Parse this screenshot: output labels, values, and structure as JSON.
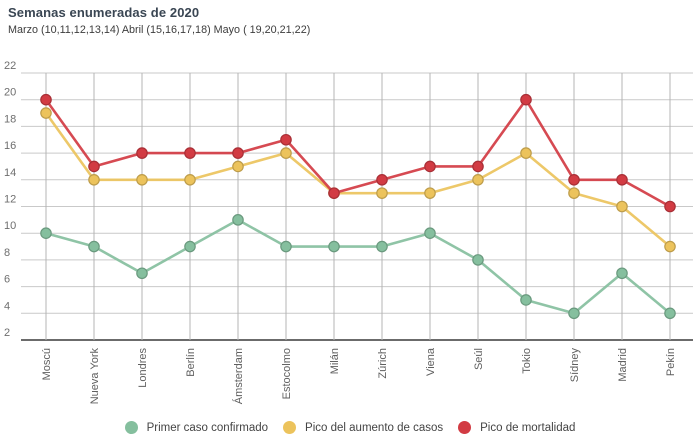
{
  "title": "Semanas enumeradas de 2020",
  "subtitle": "Marzo (10,11,12,13,14) Abril (15,16,17,18) Mayo ( 19,20,21,22)",
  "colors": {
    "background": "#ffffff",
    "title_text": "#3a4653",
    "grid": "#c9c9c9",
    "axis": "#6b6b6b",
    "green": "#85bf9e",
    "yellow": "#ecc35c",
    "red": "#d23b43"
  },
  "chart_data": {
    "type": "line",
    "title": "Semanas enumeradas de 2020",
    "subtitle": "Marzo (10,11,12,13,14) Abril (15,16,17,18) Mayo ( 19,20,21,22)",
    "categories": [
      "Moscú",
      "Nueva York",
      "Londres",
      "Berlín",
      "Ámsterdam",
      "Estocolmo",
      "Milán",
      "Zúrich",
      "Viena",
      "Seúl",
      "Tokio",
      "Sídney",
      "Madrid",
      "Pekín"
    ],
    "series": [
      {
        "name": "Primer caso confirmado",
        "color": "#85bf9e",
        "values": [
          10,
          9,
          7,
          9,
          11,
          9,
          9,
          9,
          10,
          8,
          5,
          4,
          7,
          4
        ]
      },
      {
        "name": "Pico del aumento de casos",
        "color": "#ecc35c",
        "values": [
          19,
          14,
          14,
          14,
          15,
          16,
          13,
          13,
          13,
          14,
          16,
          13,
          12,
          9
        ]
      },
      {
        "name": "Pico de mortalidad",
        "color": "#d23b43",
        "values": [
          20,
          15,
          16,
          16,
          16,
          17,
          13,
          14,
          15,
          15,
          20,
          14,
          14,
          12
        ]
      }
    ],
    "ylim": [
      2,
      22
    ],
    "ytick_step": 2,
    "yticks": [
      "2",
      "4",
      "6",
      "8",
      "10",
      "12",
      "14",
      "16",
      "18",
      "20",
      "22"
    ],
    "xlabel": "",
    "ylabel": "",
    "grid": true,
    "legend_position": "bottom"
  }
}
